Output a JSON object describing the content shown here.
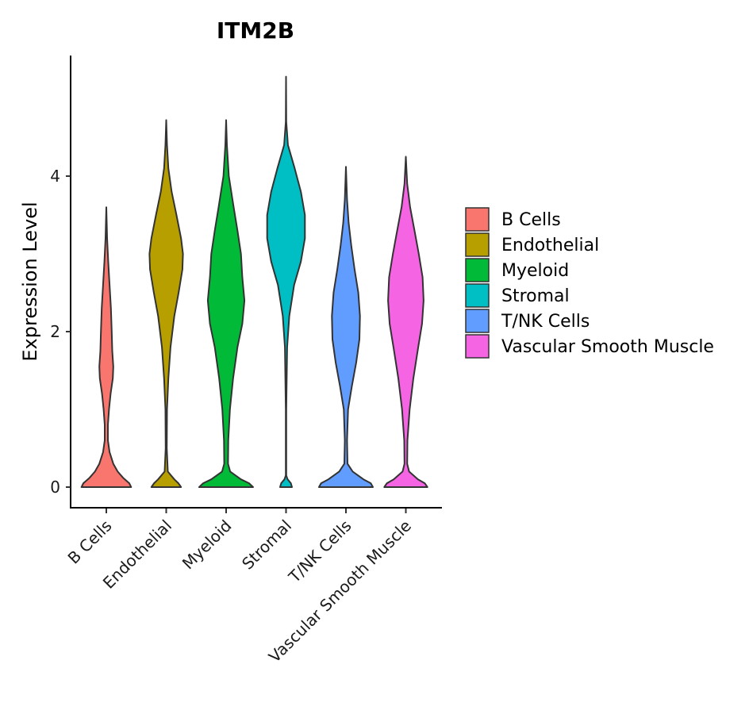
{
  "chart_data": {
    "type": "violin",
    "title": "ITM2B",
    "xlabel": "",
    "ylabel": "Expression Level",
    "ylim": [
      -0.27,
      5.5
    ],
    "yticks": [
      0,
      2,
      4
    ],
    "categories": [
      "B Cells",
      "Endothelial",
      "Myeloid",
      "Stromal",
      "T/NK Cells",
      "Vascular Smooth Muscle"
    ],
    "legend": {
      "position": "right",
      "entries": [
        "B Cells",
        "Endothelial",
        "Myeloid",
        "Stromal",
        "T/NK Cells",
        "Vascular Smooth Muscle"
      ]
    },
    "series": [
      {
        "name": "B Cells",
        "color": "#F8766D",
        "max": 3.6,
        "density": [
          [
            0.0,
            0.92
          ],
          [
            0.05,
            0.85
          ],
          [
            0.12,
            0.62
          ],
          [
            0.2,
            0.42
          ],
          [
            0.3,
            0.26
          ],
          [
            0.45,
            0.12
          ],
          [
            0.6,
            0.06
          ],
          [
            0.8,
            0.06
          ],
          [
            1.0,
            0.1
          ],
          [
            1.2,
            0.16
          ],
          [
            1.4,
            0.24
          ],
          [
            1.55,
            0.26
          ],
          [
            1.75,
            0.22
          ],
          [
            2.0,
            0.2
          ],
          [
            2.3,
            0.17
          ],
          [
            2.6,
            0.12
          ],
          [
            2.9,
            0.07
          ],
          [
            3.2,
            0.03
          ],
          [
            3.6,
            0.0
          ]
        ]
      },
      {
        "name": "Endothelial",
        "color": "#B79F00",
        "max": 4.72,
        "density": [
          [
            0.0,
            0.55
          ],
          [
            0.05,
            0.45
          ],
          [
            0.1,
            0.3
          ],
          [
            0.2,
            0.06
          ],
          [
            0.5,
            0.02
          ],
          [
            1.0,
            0.03
          ],
          [
            1.4,
            0.08
          ],
          [
            1.8,
            0.16
          ],
          [
            2.2,
            0.3
          ],
          [
            2.5,
            0.46
          ],
          [
            2.8,
            0.6
          ],
          [
            3.0,
            0.62
          ],
          [
            3.2,
            0.55
          ],
          [
            3.5,
            0.38
          ],
          [
            3.8,
            0.2
          ],
          [
            4.1,
            0.08
          ],
          [
            4.4,
            0.03
          ],
          [
            4.72,
            0.0
          ]
        ]
      },
      {
        "name": "Myeloid",
        "color": "#00BA38",
        "max": 4.72,
        "density": [
          [
            0.0,
            1.0
          ],
          [
            0.05,
            0.85
          ],
          [
            0.1,
            0.55
          ],
          [
            0.2,
            0.15
          ],
          [
            0.3,
            0.07
          ],
          [
            0.6,
            0.08
          ],
          [
            1.0,
            0.14
          ],
          [
            1.4,
            0.26
          ],
          [
            1.8,
            0.42
          ],
          [
            2.1,
            0.6
          ],
          [
            2.4,
            0.68
          ],
          [
            2.7,
            0.6
          ],
          [
            3.0,
            0.55
          ],
          [
            3.3,
            0.42
          ],
          [
            3.6,
            0.28
          ],
          [
            4.0,
            0.1
          ],
          [
            4.4,
            0.03
          ],
          [
            4.72,
            0.0
          ]
        ]
      },
      {
        "name": "Stromal",
        "color": "#00BFC4",
        "max": 5.28,
        "density": [
          [
            0.0,
            0.22
          ],
          [
            0.05,
            0.18
          ],
          [
            0.1,
            0.06
          ],
          [
            0.15,
            0.01
          ],
          [
            1.0,
            0.01
          ],
          [
            1.8,
            0.04
          ],
          [
            2.2,
            0.12
          ],
          [
            2.6,
            0.3
          ],
          [
            2.9,
            0.55
          ],
          [
            3.2,
            0.7
          ],
          [
            3.5,
            0.7
          ],
          [
            3.8,
            0.55
          ],
          [
            4.1,
            0.32
          ],
          [
            4.4,
            0.07
          ],
          [
            4.7,
            0.01
          ],
          [
            5.28,
            0.0
          ]
        ]
      },
      {
        "name": "T/NK Cells",
        "color": "#619CFF",
        "max": 4.12,
        "density": [
          [
            0.0,
            1.0
          ],
          [
            0.05,
            0.92
          ],
          [
            0.1,
            0.65
          ],
          [
            0.2,
            0.25
          ],
          [
            0.3,
            0.06
          ],
          [
            0.6,
            0.04
          ],
          [
            1.0,
            0.08
          ],
          [
            1.3,
            0.22
          ],
          [
            1.6,
            0.38
          ],
          [
            1.9,
            0.5
          ],
          [
            2.2,
            0.52
          ],
          [
            2.5,
            0.46
          ],
          [
            2.8,
            0.32
          ],
          [
            3.1,
            0.2
          ],
          [
            3.4,
            0.1
          ],
          [
            3.7,
            0.04
          ],
          [
            4.12,
            0.0
          ]
        ]
      },
      {
        "name": "Vascular Smooth Muscle",
        "color": "#F564E3",
        "max": 4.25,
        "density": [
          [
            0.0,
            0.8
          ],
          [
            0.05,
            0.7
          ],
          [
            0.1,
            0.45
          ],
          [
            0.2,
            0.12
          ],
          [
            0.3,
            0.05
          ],
          [
            0.6,
            0.06
          ],
          [
            1.0,
            0.14
          ],
          [
            1.4,
            0.28
          ],
          [
            1.8,
            0.46
          ],
          [
            2.1,
            0.6
          ],
          [
            2.4,
            0.66
          ],
          [
            2.7,
            0.62
          ],
          [
            3.0,
            0.48
          ],
          [
            3.3,
            0.32
          ],
          [
            3.6,
            0.16
          ],
          [
            3.9,
            0.05
          ],
          [
            4.25,
            0.0
          ]
        ]
      }
    ]
  }
}
